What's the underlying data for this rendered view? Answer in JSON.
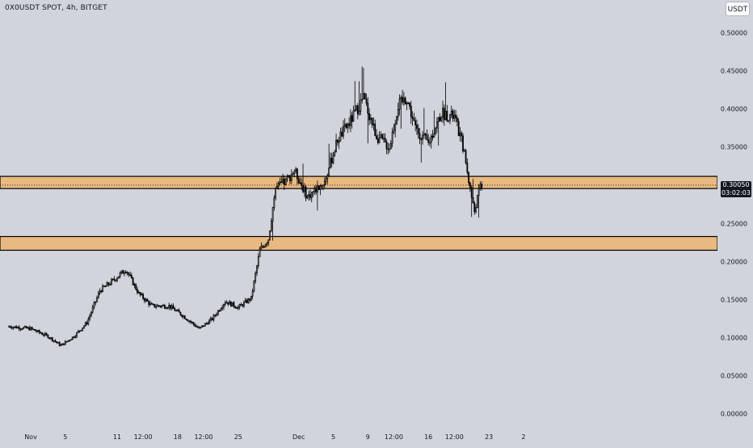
{
  "header": {
    "title": "0X0USDT SPOT, 4h, BITGET",
    "currency": "USDT"
  },
  "price_tag": {
    "price": "0.30050",
    "countdown": "03:02:03"
  },
  "colors": {
    "background": "#d1d4dc",
    "zone_fill": "#e8b980",
    "zone_border": "#000000",
    "candle": "#000000",
    "price_tag_bg": "#131722"
  },
  "chart_data": {
    "type": "candlestick",
    "timeframe": "4h",
    "ylim": [
      0.0,
      0.5
    ],
    "y_ticks": [
      "0.50000",
      "0.45000",
      "0.40000",
      "0.35000",
      "0.30000",
      "0.25000",
      "0.20000",
      "0.15000",
      "0.10000",
      "0.05000",
      "0.00000"
    ],
    "y_tick_values": [
      0.5,
      0.45,
      0.4,
      0.35,
      0.3,
      0.25,
      0.2,
      0.15,
      0.1,
      0.05,
      0.0
    ],
    "x_ticks": [
      "Nov",
      "5",
      "11",
      "12:00",
      "18",
      "12:00",
      "25",
      "Dec",
      "5",
      "9",
      "12:00",
      "16",
      "12:00",
      "23",
      "2"
    ],
    "x_tick_days": [
      1,
      5,
      11,
      14,
      18,
      21,
      25,
      32,
      36,
      40,
      43,
      47,
      50,
      54,
      58
    ],
    "zones": [
      {
        "name": "upper-zone",
        "low": 0.296,
        "high": 0.312
      },
      {
        "name": "lower-zone",
        "low": 0.215,
        "high": 0.233
      }
    ],
    "last_price": 0.3005,
    "price_path": [
      {
        "day": -1.5,
        "price": 0.115
      },
      {
        "day": 1.0,
        "price": 0.112
      },
      {
        "day": 3.0,
        "price": 0.102
      },
      {
        "day": 4.5,
        "price": 0.09
      },
      {
        "day": 6.0,
        "price": 0.102
      },
      {
        "day": 7.5,
        "price": 0.12
      },
      {
        "day": 9.0,
        "price": 0.162
      },
      {
        "day": 10.5,
        "price": 0.175
      },
      {
        "day": 12.0,
        "price": 0.19
      },
      {
        "day": 13.5,
        "price": 0.158
      },
      {
        "day": 15.0,
        "price": 0.142
      },
      {
        "day": 17.0,
        "price": 0.142
      },
      {
        "day": 18.5,
        "price": 0.13
      },
      {
        "day": 20.5,
        "price": 0.112
      },
      {
        "day": 22.0,
        "price": 0.125
      },
      {
        "day": 23.5,
        "price": 0.148
      },
      {
        "day": 25.0,
        "price": 0.14
      },
      {
        "day": 26.5,
        "price": 0.152
      },
      {
        "day": 27.5,
        "price": 0.215
      },
      {
        "day": 28.5,
        "price": 0.23
      },
      {
        "day": 29.3,
        "price": 0.296
      },
      {
        "day": 30.5,
        "price": 0.305
      },
      {
        "day": 31.5,
        "price": 0.32
      },
      {
        "day": 33.0,
        "price": 0.285
      },
      {
        "day": 35.0,
        "price": 0.305
      },
      {
        "day": 36.5,
        "price": 0.36
      },
      {
        "day": 38.0,
        "price": 0.385
      },
      {
        "day": 39.5,
        "price": 0.415
      },
      {
        "day": 41.0,
        "price": 0.365
      },
      {
        "day": 42.5,
        "price": 0.35
      },
      {
        "day": 43.5,
        "price": 0.405
      },
      {
        "day": 44.5,
        "price": 0.415
      },
      {
        "day": 45.5,
        "price": 0.375
      },
      {
        "day": 47.0,
        "price": 0.355
      },
      {
        "day": 48.5,
        "price": 0.395
      },
      {
        "day": 50.0,
        "price": 0.39
      },
      {
        "day": 51.0,
        "price": 0.352
      },
      {
        "day": 51.7,
        "price": 0.305
      },
      {
        "day": 52.3,
        "price": 0.265
      },
      {
        "day": 53.0,
        "price": 0.3
      },
      {
        "day": 53.3,
        "price": 0.3
      }
    ]
  }
}
